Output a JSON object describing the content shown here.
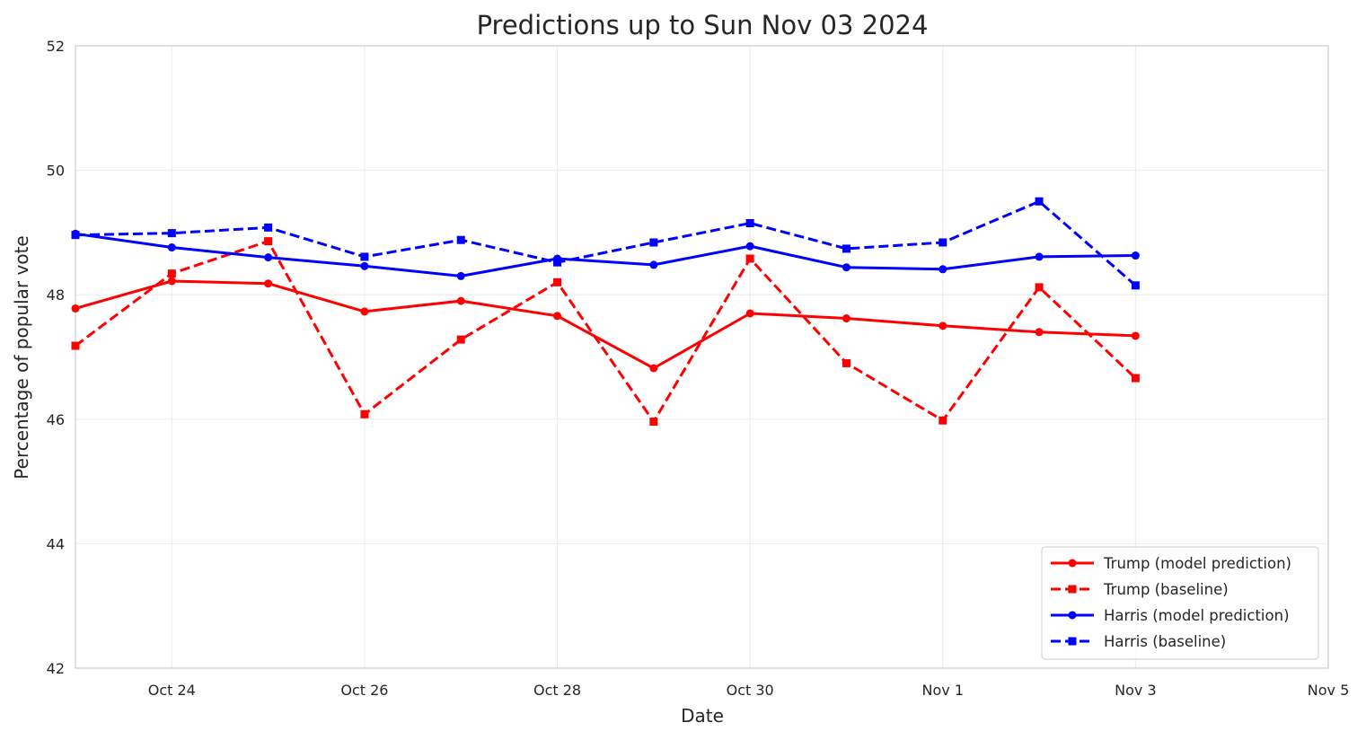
{
  "chart_data": {
    "type": "line",
    "title": "Predictions up to Sun Nov 03 2024",
    "xlabel": "Date",
    "ylabel": "Percentage of popular vote",
    "ylim": [
      42,
      52
    ],
    "xlim": [
      "2024-10-23",
      "2024-11-05"
    ],
    "x_ticks": [
      {
        "date": "2024-10-24",
        "label": "Oct 24"
      },
      {
        "date": "2024-10-26",
        "label": "Oct 26"
      },
      {
        "date": "2024-10-28",
        "label": "Oct 28"
      },
      {
        "date": "2024-10-30",
        "label": "Oct 30"
      },
      {
        "date": "2024-11-01",
        "label": "Nov 1"
      },
      {
        "date": "2024-11-03",
        "label": "Nov 3"
      },
      {
        "date": "2024-11-05",
        "label": "Nov 5"
      }
    ],
    "y_ticks": [
      42,
      44,
      46,
      48,
      50,
      52
    ],
    "grid": true,
    "legend_position": "bottom-right",
    "x": [
      "2024-10-23",
      "2024-10-24",
      "2024-10-25",
      "2024-10-26",
      "2024-10-27",
      "2024-10-28",
      "2024-10-29",
      "2024-10-30",
      "2024-10-31",
      "2024-11-01",
      "2024-11-02",
      "2024-11-03"
    ],
    "series": [
      {
        "name": "Trump (model prediction)",
        "color": "#ff0000",
        "dashed": false,
        "marker": "circle",
        "values": [
          47.78,
          48.22,
          48.18,
          47.73,
          47.9,
          47.66,
          46.82,
          47.7,
          47.62,
          47.5,
          47.4,
          47.34
        ]
      },
      {
        "name": "Trump (baseline)",
        "color": "#ff0000",
        "dashed": true,
        "marker": "square",
        "values": [
          47.18,
          48.34,
          48.86,
          46.08,
          47.28,
          48.2,
          45.96,
          48.58,
          46.9,
          45.98,
          48.12,
          46.66
        ]
      },
      {
        "name": "Harris (model prediction)",
        "color": "#0000ff",
        "dashed": false,
        "marker": "circle",
        "values": [
          48.98,
          48.76,
          48.6,
          48.46,
          48.3,
          48.58,
          48.48,
          48.78,
          48.44,
          48.41,
          48.61,
          48.63
        ]
      },
      {
        "name": "Harris (baseline)",
        "color": "#0000ff",
        "dashed": true,
        "marker": "square",
        "values": [
          48.96,
          48.99,
          49.08,
          48.61,
          48.88,
          48.52,
          48.84,
          49.15,
          48.74,
          48.84,
          49.5,
          48.15
        ]
      }
    ]
  }
}
